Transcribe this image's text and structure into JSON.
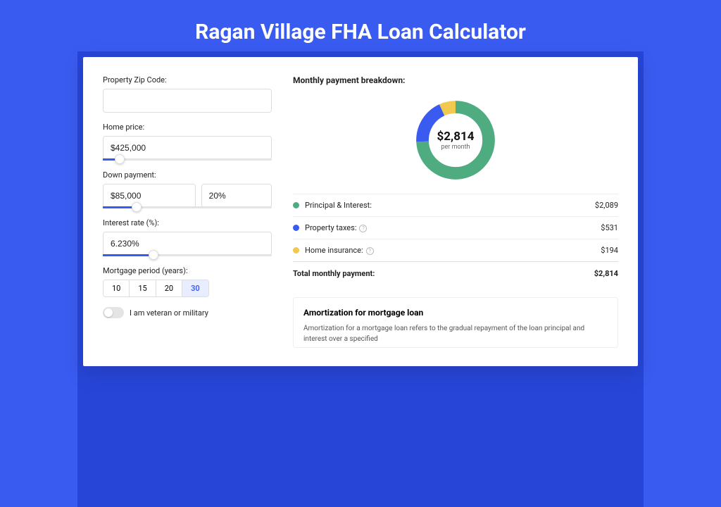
{
  "hero": {
    "title": "Ragan Village FHA Loan Calculator"
  },
  "form": {
    "zip": {
      "label": "Property Zip Code:",
      "value": ""
    },
    "price": {
      "label": "Home price:",
      "value": "$425,000",
      "slider_pct": 10
    },
    "down": {
      "label": "Down payment:",
      "amount": "$85,000",
      "pct": "20%",
      "slider_pct": 20
    },
    "rate": {
      "label": "Interest rate (%):",
      "value": "6.230%",
      "slider_pct": 30
    },
    "period": {
      "label": "Mortgage period (years):",
      "options": [
        "10",
        "15",
        "20",
        "30"
      ],
      "active": "30"
    },
    "veteran": {
      "label": "I am veteran or military",
      "on": false
    }
  },
  "breakdown": {
    "title": "Monthly payment breakdown:",
    "donut": {
      "amount": "$2,814",
      "sub": "per month",
      "slices": [
        {
          "color": "#4fab80",
          "pct": 74.2
        },
        {
          "color": "#3a5bf0",
          "pct": 18.9
        },
        {
          "color": "#f0c94e",
          "pct": 6.9
        }
      ]
    },
    "rows": [
      {
        "label": "Principal & Interest:",
        "value": "$2,089",
        "color": "#4fab80",
        "info": false
      },
      {
        "label": "Property taxes:",
        "value": "$531",
        "color": "#3a5bf0",
        "info": true
      },
      {
        "label": "Home insurance:",
        "value": "$194",
        "color": "#f0c94e",
        "info": true
      }
    ],
    "total": {
      "label": "Total monthly payment:",
      "value": "$2,814"
    }
  },
  "amort": {
    "title": "Amortization for mortgage loan",
    "text": "Amortization for a mortgage loan refers to the gradual repayment of the loan principal and interest over a specified"
  }
}
